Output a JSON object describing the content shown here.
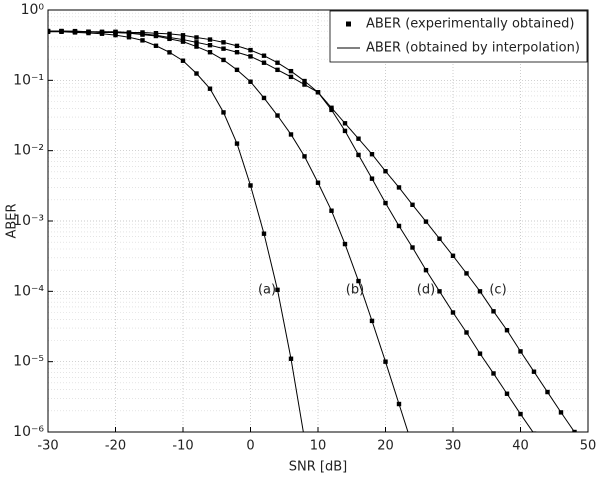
{
  "chart_data": {
    "type": "line",
    "xlabel": "SNR [dB]",
    "ylabel": "ABER",
    "xlim": [
      -30,
      50
    ],
    "xticks": [
      -30,
      -20,
      -10,
      0,
      10,
      20,
      30,
      40,
      50
    ],
    "ylim": [
      1e-06,
      1
    ],
    "yticks": [
      {
        "value": 1,
        "label": "10⁰"
      },
      {
        "value": 0.1,
        "label": "10⁻¹"
      },
      {
        "value": 0.01,
        "label": "10⁻²"
      },
      {
        "value": 0.001,
        "label": "10⁻³"
      },
      {
        "value": 0.0001,
        "label": "10⁻⁴"
      },
      {
        "value": 1e-05,
        "label": "10⁻⁵"
      },
      {
        "value": 1e-06,
        "label": "10⁻⁶"
      }
    ],
    "ylog": true,
    "grid": true,
    "minor_grid": true,
    "legend": [
      "ABER (experimentally obtained)",
      "ABER (obtained by interpolation)"
    ],
    "legend_position": "upper right",
    "x": [
      -30,
      -28,
      -26,
      -24,
      -22,
      -20,
      -18,
      -16,
      -14,
      -12,
      -10,
      -8,
      -6,
      -4,
      -2,
      0,
      2,
      4,
      6,
      8,
      10,
      12,
      14,
      16,
      18,
      20,
      22,
      24,
      26,
      28,
      30,
      32,
      34,
      36,
      38,
      40,
      42,
      44,
      46,
      48
    ],
    "series": [
      {
        "name": "(a)",
        "color": "#000000",
        "values": [
          0.49,
          0.49,
          0.48,
          0.47,
          0.46,
          0.44,
          0.41,
          0.37,
          0.31,
          0.25,
          0.19,
          0.125,
          0.076,
          0.035,
          0.0126,
          0.0032,
          0.00066,
          0.000105,
          1.1e-05,
          8e-07,
          null,
          null,
          null,
          null,
          null,
          null,
          null,
          null,
          null,
          null,
          null,
          null,
          null,
          null,
          null,
          null,
          null,
          null,
          null,
          null
        ]
      },
      {
        "name": "(b)",
        "color": "#000000",
        "values": [
          0.501,
          0.501,
          0.49,
          0.49,
          0.479,
          0.479,
          0.468,
          0.447,
          0.427,
          0.389,
          0.355,
          0.302,
          0.251,
          0.195,
          0.141,
          0.0955,
          0.0562,
          0.0316,
          0.017,
          0.0083,
          0.0035,
          0.0014,
          0.00047,
          0.00014,
          3.8e-05,
          1e-05,
          2.5e-06,
          6.3e-07,
          null,
          null,
          null,
          null,
          null,
          null,
          null,
          null,
          null,
          null,
          null,
          null
        ]
      },
      {
        "name": "(d)",
        "color": "#000000",
        "values": [
          0.501,
          0.501,
          0.501,
          0.49,
          0.49,
          0.49,
          0.479,
          0.479,
          0.468,
          0.457,
          0.437,
          0.407,
          0.38,
          0.347,
          0.309,
          0.269,
          0.224,
          0.178,
          0.135,
          0.0977,
          0.0676,
          0.038,
          0.0191,
          0.0087,
          0.004,
          0.0018,
          0.00085,
          0.00042,
          0.0002,
          0.0001,
          5e-05,
          2.6e-05,
          1.3e-05,
          6.8e-06,
          3.5e-06,
          1.8e-06,
          9.5e-07,
          null,
          null,
          null
        ]
      },
      {
        "name": "(c)",
        "color": "#000000",
        "values": [
          0.501,
          0.501,
          0.49,
          0.49,
          0.479,
          0.479,
          0.468,
          0.457,
          0.437,
          0.407,
          0.38,
          0.347,
          0.316,
          0.282,
          0.251,
          0.219,
          0.178,
          0.141,
          0.112,
          0.0871,
          0.0676,
          0.0407,
          0.0245,
          0.0148,
          0.0089,
          0.0051,
          0.003,
          0.0017,
          0.00098,
          0.00056,
          0.00032,
          0.00018,
          0.0001,
          5.2e-05,
          2.8e-05,
          1.4e-05,
          7.2e-06,
          3.7e-06,
          1.9e-06,
          1e-06
        ]
      }
    ]
  }
}
